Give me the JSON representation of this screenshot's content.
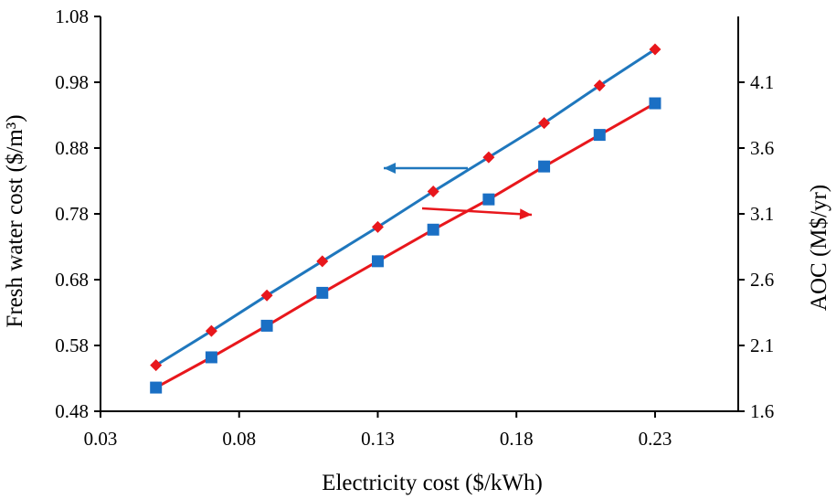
{
  "chart_data": {
    "type": "line",
    "title": "",
    "xlabel": "Electricity cost ($/kWh)",
    "ylabel_left": "Fresh water cost ($/m³)",
    "ylabel_right": "AOC (M$/yr)",
    "xlim": [
      0.03,
      0.26
    ],
    "ylim_left": [
      0.48,
      1.08
    ],
    "ylim_right": [
      1.6,
      4.6
    ],
    "x_ticks": [
      "0.03",
      "0.08",
      "0.13",
      "0.18",
      "0.23"
    ],
    "y_left_ticks": [
      "0.48",
      "0.58",
      "0.68",
      "0.78",
      "0.88",
      "0.98",
      "1.08"
    ],
    "y_right_ticks": [
      "1.6",
      "2.1",
      "2.6",
      "3.1",
      "3.6",
      "4.1"
    ],
    "grid": false,
    "x": [
      0.05,
      0.07,
      0.09,
      0.11,
      0.13,
      0.15,
      0.17,
      0.19,
      0.21,
      0.23
    ],
    "series": [
      {
        "axis": "left",
        "marker": "diamond",
        "color": "#e8171c",
        "line_color": "#1f77bd",
        "values": [
          0.55,
          0.602,
          0.656,
          0.708,
          0.76,
          0.814,
          0.866,
          0.918,
          0.975,
          1.03
        ]
      },
      {
        "axis": "right",
        "marker": "square",
        "color": "#1a6fc4",
        "line_color": "#e8171c",
        "values": [
          1.78,
          2.01,
          2.25,
          2.5,
          2.74,
          2.98,
          3.21,
          3.46,
          3.7,
          3.94
        ]
      }
    ]
  }
}
